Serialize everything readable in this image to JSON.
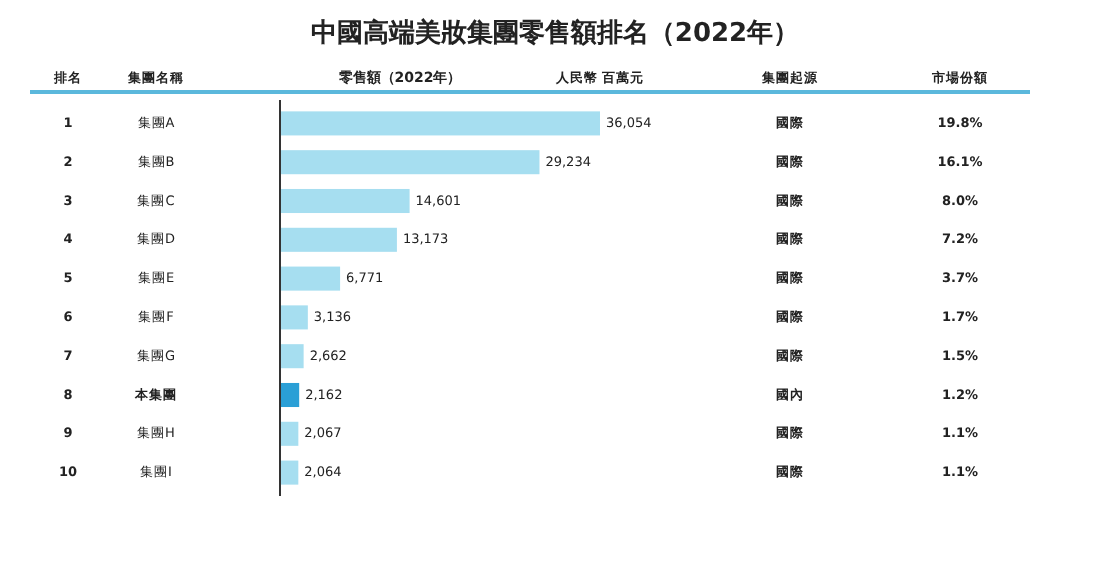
{
  "chart_data": {
    "type": "bar",
    "orientation": "horizontal",
    "title": "中國高端美妝集團零售額排名（2022年）",
    "xlabel": "零售額（2022年）",
    "categories": [
      "集團A",
      "集團B",
      "集團C",
      "集團D",
      "集團E",
      "集團F",
      "集團G",
      "本集團",
      "集團H",
      "集團I"
    ],
    "values": [
      36054,
      29234,
      14601,
      13173,
      6771,
      3136,
      2662,
      2162,
      2067,
      2064
    ],
    "value_labels": [
      "36,054",
      "29,234",
      "14,601",
      "13,173",
      "6,771",
      "3,136",
      "2,662",
      "2,162",
      "2,067",
      "2,064"
    ],
    "colors": [
      "#a6def0",
      "#a6def0",
      "#a6def0",
      "#a6def0",
      "#a6def0",
      "#a6def0",
      "#a6def0",
      "#2a9fd6",
      "#a6def0",
      "#a6def0"
    ],
    "annotations": [
      "排名",
      "集團名稱",
      "人民幣 百萬元",
      "集團起源",
      "市場份額",
      "1",
      "國際",
      "19.8%",
      "2",
      "國際",
      "16.1%",
      "3",
      "國際",
      "8.0%",
      "4",
      "國際",
      "7.2%",
      "5",
      "國際",
      "3.7%",
      "6",
      "國際",
      "1.7%",
      "7",
      "國際",
      "1.5%",
      "8",
      "國內",
      "1.2%",
      "9",
      "國際",
      "1.1%",
      "10",
      "國際",
      "1.1%"
    ]
  }
}
